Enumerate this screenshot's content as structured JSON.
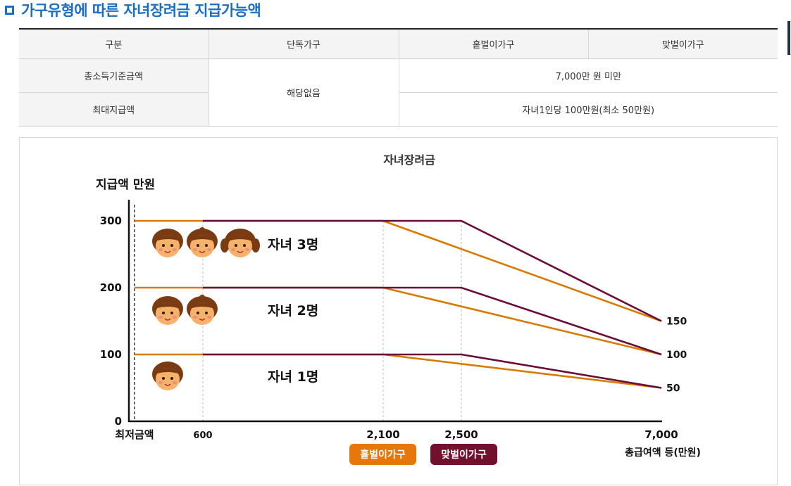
{
  "section": {
    "title": "가구유형에 따른 자녀장려금 지급가능액"
  },
  "table": {
    "headers": [
      "구분",
      "단독가구",
      "홑벌이가구",
      "맞벌이가구"
    ],
    "rows": [
      {
        "label": "총소득기준금액",
        "single": "해당없음",
        "value": "7,000만 원 미만"
      },
      {
        "label": "최대지급액",
        "value": "자녀1인당 100만원(최소 50만원)"
      }
    ]
  },
  "chart_data": {
    "type": "line",
    "title": "자녀장려금",
    "ylabel": "지급액 만원",
    "xlabel": "총급여액 등(만원)",
    "x_ticks": [
      "최저금액",
      "600",
      "2,100",
      "2,500",
      "7,000"
    ],
    "y_ticks": [
      "0",
      "100",
      "200",
      "300"
    ],
    "right_ticks": [
      "150",
      "100",
      "50"
    ],
    "ylim": [
      0,
      340
    ],
    "series": [
      {
        "name": "홑벌이가구",
        "color": "#d97a00",
        "lines": [
          {
            "label": "자녀 3명",
            "points": [
              [
                0,
                300
              ],
              [
                2100,
                300
              ],
              [
                7000,
                150
              ]
            ]
          },
          {
            "label": "자녀 2명",
            "points": [
              [
                0,
                200
              ],
              [
                2100,
                200
              ],
              [
                7000,
                100
              ]
            ]
          },
          {
            "label": "자녀 1명",
            "points": [
              [
                0,
                100
              ],
              [
                2100,
                100
              ],
              [
                7000,
                50
              ]
            ]
          }
        ]
      },
      {
        "name": "맞벌이가구",
        "color": "#6b0a36",
        "lines": [
          {
            "label": "자녀 3명",
            "points": [
              [
                600,
                300
              ],
              [
                2500,
                300
              ],
              [
                7000,
                150
              ]
            ]
          },
          {
            "label": "자녀 2명",
            "points": [
              [
                600,
                200
              ],
              [
                2500,
                200
              ],
              [
                7000,
                100
              ]
            ]
          },
          {
            "label": "자녀 1명",
            "points": [
              [
                600,
                100
              ],
              [
                2500,
                100
              ],
              [
                7000,
                50
              ]
            ]
          }
        ]
      }
    ],
    "annotations": [
      "자녀 3명",
      "자녀 2명",
      "자녀 1명"
    ],
    "legend": [
      {
        "label": "홑벌이가구",
        "color": "#e87709"
      },
      {
        "label": "맞벌이가구",
        "color": "#73102e"
      }
    ]
  }
}
